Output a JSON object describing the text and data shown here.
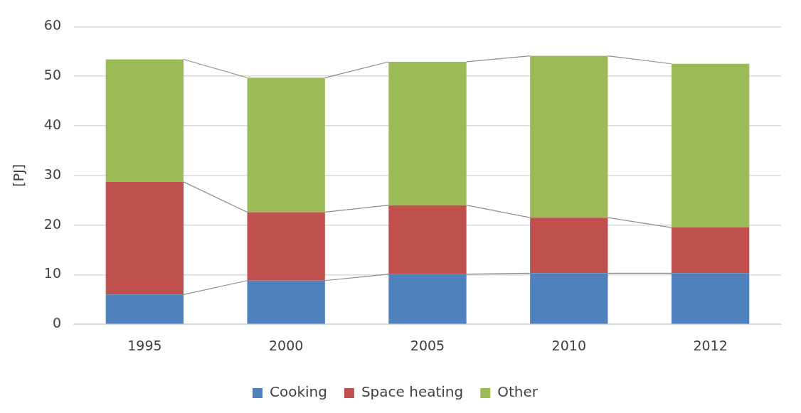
{
  "chart_data": {
    "type": "bar",
    "stacked": true,
    "ylabel": "[PJ]",
    "categories": [
      "1995",
      "2000",
      "2005",
      "2010",
      "2012"
    ],
    "series": [
      {
        "name": "Cooking",
        "color": "#4f81bd",
        "values": [
          6.0,
          8.8,
          10.1,
          10.3,
          10.3
        ]
      },
      {
        "name": "Space heating",
        "color": "#c0504d",
        "values": [
          22.7,
          13.8,
          13.9,
          11.2,
          9.2
        ]
      },
      {
        "name": "Other",
        "color": "#9bbb59",
        "values": [
          24.7,
          27.1,
          28.9,
          32.6,
          33.0
        ]
      }
    ],
    "ylim": [
      0,
      60
    ],
    "yticks": [
      0,
      10,
      20,
      30,
      40,
      50,
      60
    ],
    "grid": "y",
    "legend": "bottom"
  }
}
